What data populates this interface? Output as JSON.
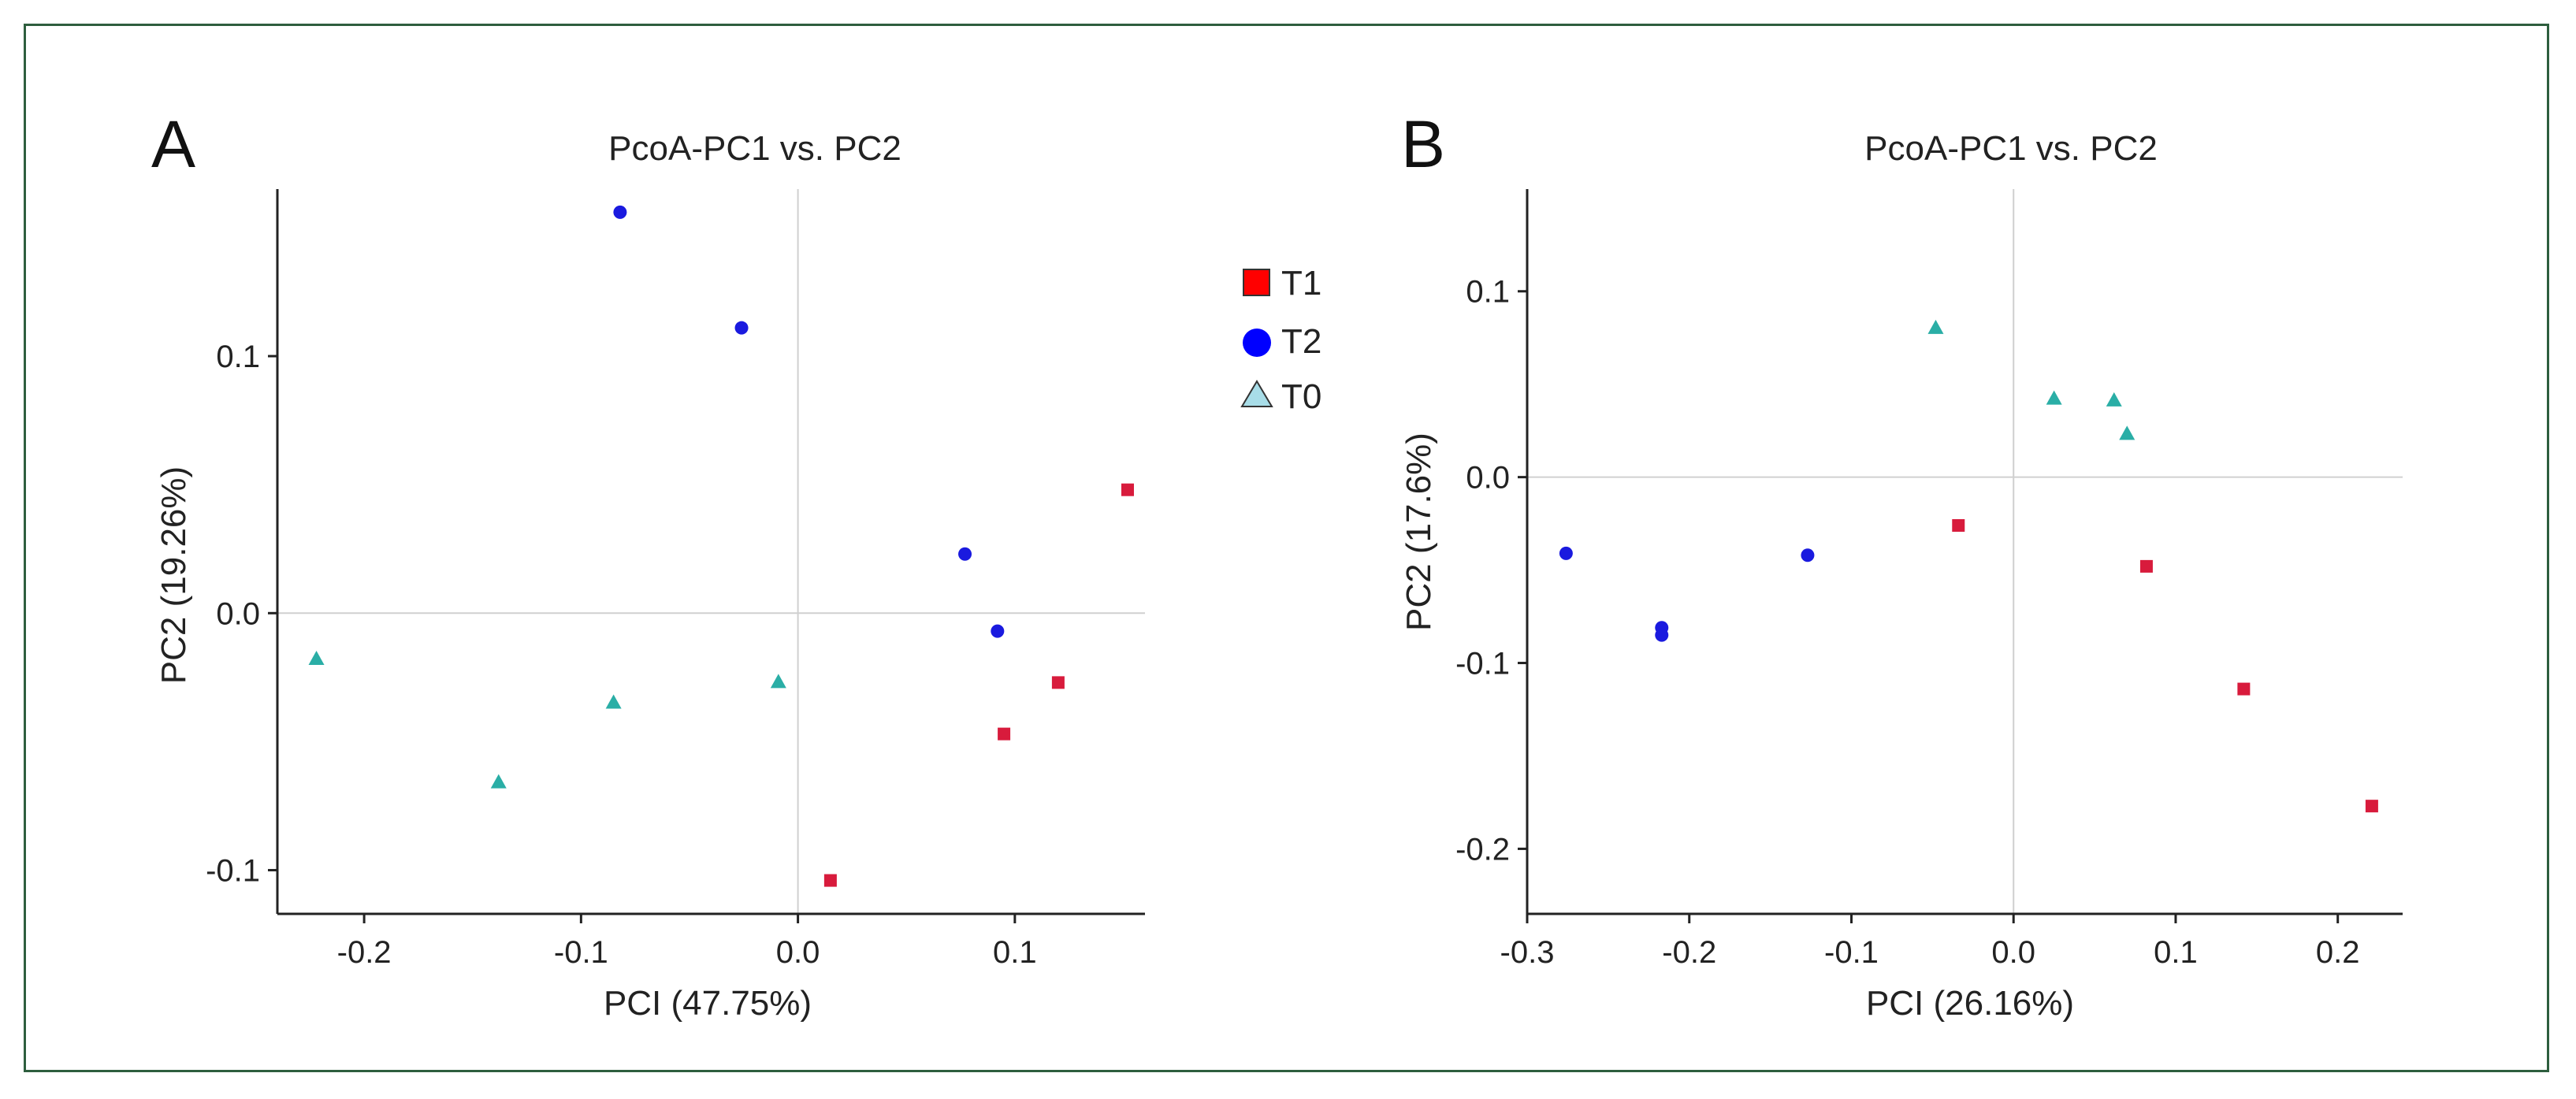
{
  "chart_data": [
    {
      "panel_label": "A",
      "type": "scatter",
      "title": "PcoA-PC1 vs. PC2",
      "xlabel": "PCI (47.75%)",
      "ylabel": "PC2 (19.26%)",
      "xlim": [
        -0.24,
        0.16
      ],
      "ylim": [
        -0.117,
        0.165
      ],
      "xticks": [
        -0.2,
        -0.1,
        0.0,
        0.1
      ],
      "xtick_labels": [
        "-0.2",
        "-0.1",
        "0.0",
        "0.1"
      ],
      "yticks": [
        0.1,
        0.0,
        -0.1
      ],
      "ytick_labels": [
        "0.1",
        "0.0",
        "-0.1"
      ],
      "series": [
        {
          "name": "T1",
          "marker": "square",
          "color": "#d81b3c",
          "points": [
            [
              0.152,
              0.048
            ],
            [
              0.12,
              -0.027
            ],
            [
              0.095,
              -0.047
            ],
            [
              0.015,
              -0.104
            ]
          ]
        },
        {
          "name": "T2",
          "marker": "circle",
          "color": "#1a1adf",
          "points": [
            [
              -0.082,
              0.156
            ],
            [
              -0.026,
              0.111
            ],
            [
              0.077,
              0.023
            ],
            [
              0.092,
              -0.007
            ]
          ]
        },
        {
          "name": "T0",
          "marker": "triangle",
          "color": "#2aaea6",
          "points": [
            [
              -0.222,
              -0.018
            ],
            [
              -0.085,
              -0.035
            ],
            [
              -0.009,
              -0.027
            ],
            [
              -0.138,
              -0.066
            ]
          ]
        }
      ]
    },
    {
      "panel_label": "B",
      "type": "scatter",
      "title": "PcoA-PC1 vs. PC2",
      "xlabel": "PCI (26.16%)",
      "ylabel": "PC2 (17.6%)",
      "xlim": [
        -0.3,
        0.24
      ],
      "ylim": [
        -0.235,
        0.155
      ],
      "xticks": [
        -0.3,
        -0.2,
        -0.1,
        0.0,
        0.1,
        0.2
      ],
      "xtick_labels": [
        "-0.3",
        "-0.2",
        "-0.1",
        "0.0",
        "0.1",
        "0.2"
      ],
      "yticks": [
        0.1,
        0.0,
        -0.1,
        -0.2
      ],
      "ytick_labels": [
        "0.1",
        "0.0",
        "-0.1",
        "-0.2"
      ],
      "series": [
        {
          "name": "T1",
          "marker": "square",
          "color": "#d81b3c",
          "points": [
            [
              -0.034,
              -0.026
            ],
            [
              0.082,
              -0.048
            ],
            [
              0.142,
              -0.114
            ],
            [
              0.221,
              -0.177
            ]
          ]
        },
        {
          "name": "T2",
          "marker": "circle",
          "color": "#1a1adf",
          "points": [
            [
              -0.276,
              -0.041
            ],
            [
              -0.217,
              -0.081
            ],
            [
              -0.217,
              -0.085
            ],
            [
              -0.127,
              -0.042
            ]
          ]
        },
        {
          "name": "T0",
          "marker": "triangle",
          "color": "#2aaea6",
          "points": [
            [
              -0.048,
              0.08
            ],
            [
              0.025,
              0.042
            ],
            [
              0.062,
              0.041
            ],
            [
              0.07,
              0.023
            ]
          ]
        }
      ]
    }
  ],
  "legend": {
    "items": [
      {
        "label": "T1",
        "marker": "square",
        "color": "#ff0000"
      },
      {
        "label": "T2",
        "marker": "circle",
        "color": "#0000ff"
      },
      {
        "label": "T0",
        "marker": "triangle",
        "color": "#a8dde8"
      }
    ]
  }
}
